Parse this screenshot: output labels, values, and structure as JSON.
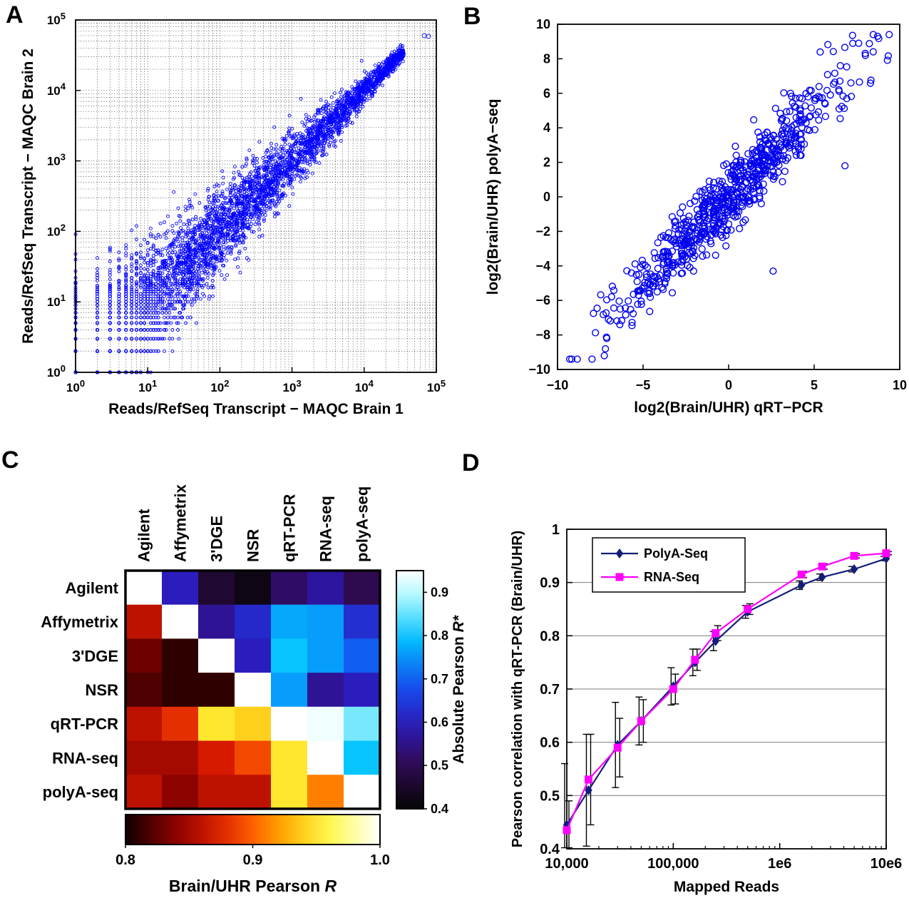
{
  "figure": {
    "background": "#ffffff",
    "panel_letters": {
      "a": "A",
      "b": "B",
      "c": "C",
      "d": "D"
    }
  },
  "chart_data": [
    {
      "id": "A",
      "type": "scatter",
      "title": "",
      "xlabel": "Reads/RefSeq Transcript − MAQC Brain 1",
      "ylabel": "Reads/RefSeq Transcript − MAQC Brain 2",
      "xscale": "log",
      "yscale": "log",
      "xlim": [
        1,
        100000
      ],
      "ylim": [
        1,
        100000
      ],
      "tick_exponents": [
        0,
        1,
        2,
        3,
        4,
        5
      ],
      "grid": {
        "style": "dotted",
        "minor": true,
        "color": "#2a2a2a"
      },
      "marker": {
        "shape": "circle",
        "color": "#0000ff",
        "size": 2,
        "fill": "none"
      },
      "description": "Dense correlated log-log scatter of read counts per RefSeq transcript between MAQC Brain replicate 1 and replicate 2; low counts are integer-quantized producing lattice lines near the origin; spread narrows at high counts; one high outlier near (70000, 62000).",
      "generator": {
        "n": 5200,
        "seed": 42,
        "logx_max": 4.55,
        "low_bias": 1.45,
        "noise_at_zero": 0.52,
        "noise_at_max": 0.045,
        "quantize_below": 25
      },
      "outliers": [
        [
          68000,
          60000
        ]
      ]
    },
    {
      "id": "B",
      "type": "scatter",
      "title": "",
      "xlabel": "log2(Brain/UHR) qRT−PCR",
      "ylabel": "log2(Brain/UHR) polyA−seq",
      "xlim": [
        -10,
        10
      ],
      "ylim": [
        -10,
        10
      ],
      "xticks": [
        -10,
        -5,
        0,
        5,
        10
      ],
      "yticks": [
        -10,
        -8,
        -6,
        -4,
        -2,
        0,
        2,
        4,
        6,
        8,
        10
      ],
      "marker": {
        "shape": "circle",
        "color": "#0000ee",
        "size": 4.4,
        "fill": "none"
      },
      "description": "log2 Brain/UHR expression ratios measured by qRT-PCR (x) versus polyA-seq (y); roughly 750 genes falling tightly along the y = x diagonal from (-9,-9) to (9,9).",
      "generator": {
        "n": 740,
        "seed": 7,
        "x_sd": 3.4,
        "x_center": 0,
        "slope": 0.98,
        "noise_sd": 1.05,
        "clip": 9.4
      },
      "outliers": [
        [
          2.6,
          -4.3
        ],
        [
          6.8,
          1.8
        ],
        [
          -7.2,
          -8.8
        ],
        [
          7.6,
          8.9
        ]
      ]
    },
    {
      "id": "C",
      "type": "heatmap",
      "labels": [
        "Agilent",
        "Affymetrix",
        "3'DGE",
        "NSR",
        "qRT-PCR",
        "RNA-seq",
        "polyA-seq"
      ],
      "matrix": [
        [
          null,
          0.6,
          0.46,
          0.42,
          0.52,
          0.57,
          0.5
        ],
        [
          0.86,
          null,
          0.56,
          0.62,
          0.77,
          0.76,
          0.63
        ],
        [
          0.83,
          0.81,
          null,
          0.6,
          0.8,
          0.76,
          0.7
        ],
        [
          0.82,
          0.81,
          0.81,
          null,
          0.76,
          0.56,
          0.6
        ],
        [
          0.86,
          0.88,
          0.95,
          0.94,
          null,
          0.94,
          0.86
        ],
        [
          0.85,
          0.85,
          0.87,
          0.89,
          0.95,
          null,
          0.8
        ],
        [
          0.86,
          0.84,
          0.86,
          0.86,
          0.95,
          0.91,
          null
        ]
      ],
      "upper_scale": {
        "label": "Absolute Pearson R*",
        "range": [
          0.4,
          0.95
        ],
        "ticks": [
          0.4,
          0.5,
          0.6,
          0.7,
          0.8,
          0.9
        ],
        "colormap": "black-purple-blue-cyan-white"
      },
      "lower_scale": {
        "label": "Brain/UHR Pearson R",
        "range": [
          0.8,
          1.0
        ],
        "ticks": [
          0.8,
          0.9,
          1.0
        ],
        "colormap": "black-red-orange-yellow-white"
      },
      "description": "7x7 cross-platform correlation heatmap; upper triangle shows absolute Pearson R* (cool colormap, 0.4-0.95); lower triangle shows Brain/UHR Pearson R (hot colormap, 0.8-1.0); diagonal is white."
    },
    {
      "id": "D",
      "type": "line",
      "xlabel": "Mapped Reads",
      "ylabel": "Pearson correlation with qRT-PCR (Brain/UHR)",
      "xscale": "log",
      "xlim": [
        10000,
        10000000
      ],
      "ylim": [
        0.4,
        1.0
      ],
      "xtick_values": [
        10000,
        100000,
        1000000,
        10000000
      ],
      "xtick_labels": [
        "10,000",
        "100,000",
        "1e6",
        "10e6"
      ],
      "yticks": [
        0.4,
        0.5,
        0.6,
        0.7,
        0.8,
        0.9,
        1
      ],
      "grid": {
        "horizontal": true
      },
      "x": [
        10000,
        16000,
        30000,
        50000,
        100000,
        160000,
        250000,
        500000,
        1600000,
        2500000,
        5000000,
        10000000
      ],
      "series": [
        {
          "name": "PolyA-Seq",
          "color": "#141e78",
          "marker": "diamond",
          "values": [
            0.445,
            0.51,
            0.595,
            0.64,
            0.705,
            0.75,
            0.79,
            0.845,
            0.895,
            0.91,
            0.925,
            0.945
          ],
          "err": [
            0.115,
            0.105,
            0.08,
            0.045,
            0.035,
            0.025,
            0.018,
            0.012,
            0.008,
            0.006,
            0.005,
            0.004
          ]
        },
        {
          "name": "RNA-Seq",
          "color": "#ff00ff",
          "marker": "square",
          "values": [
            0.435,
            0.53,
            0.59,
            0.64,
            0.7,
            0.755,
            0.805,
            0.85,
            0.915,
            0.93,
            0.95,
            0.955
          ],
          "err": [
            0.055,
            0.085,
            0.055,
            0.04,
            0.028,
            0.02,
            0.014,
            0.01,
            0.006,
            0.005,
            0.004,
            0.003
          ]
        }
      ],
      "legend": {
        "position": "top-left",
        "entries": [
          "PolyA-Seq",
          "RNA-Seq"
        ]
      },
      "description": "Pearson correlation with qRT-PCR (Brain/UHR ratios) versus number of mapped reads (log scale); both PolyA-Seq and RNA-Seq saturate near 0.95 by 10 million reads; error bars shrink as read depth grows."
    }
  ]
}
